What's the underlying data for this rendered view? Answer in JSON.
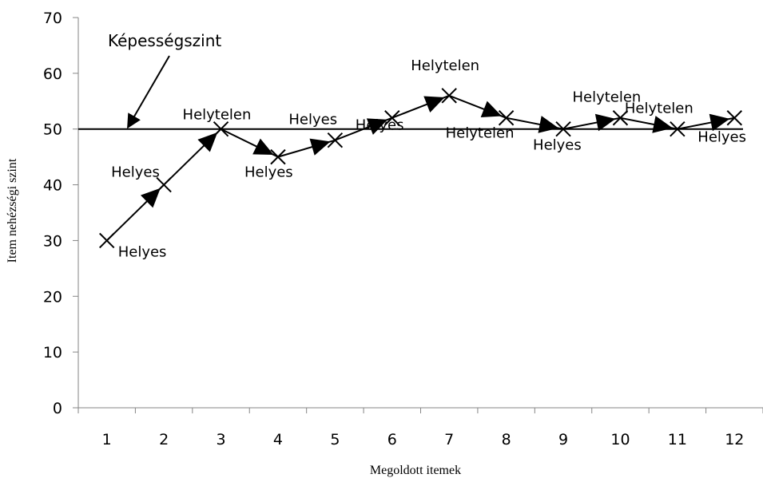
{
  "chart_data": {
    "type": "line",
    "xlabel": "Megoldott itemek",
    "ylabel": "Item nehézségi szint",
    "ylim": [
      0,
      70
    ],
    "yticks": [
      0,
      10,
      20,
      30,
      40,
      50,
      60,
      70
    ],
    "categories": [
      "1",
      "2",
      "3",
      "4",
      "5",
      "6",
      "7",
      "8",
      "9",
      "10",
      "11",
      "12"
    ],
    "series": [
      {
        "values": [
          30,
          40,
          50,
          45,
          48,
          52,
          56,
          52,
          50,
          52,
          50,
          52
        ]
      }
    ],
    "point_labels": [
      "Helyes",
      "Helyes",
      "Helytelen",
      "Helyes",
      "Helyes",
      "Helyes",
      "Helytelen",
      "Helytelen",
      "Helyes",
      "Helytelen",
      "Helytelen",
      "Helyes"
    ],
    "reference_line": {
      "value": 50
    },
    "annotation": {
      "text": "Képességszint",
      "points_to": 50
    },
    "grid": false,
    "marker": "x",
    "arrows": true
  }
}
